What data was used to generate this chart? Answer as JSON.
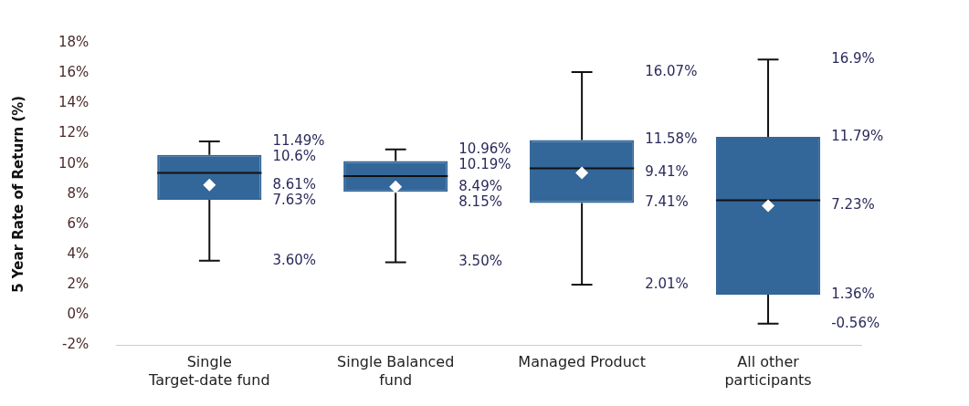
{
  "chart_data": {
    "type": "box",
    "ylabel": "5 Year Rate of Return (%)",
    "categories": [
      "Single Target-date fund",
      "Single Balanced fund",
      "Managed Product",
      "All other participants"
    ],
    "color": "#336699",
    "boxes": [
      {
        "low": 3.6,
        "q1": 7.63,
        "median": 9.4,
        "q3": 10.6,
        "high": 11.49,
        "mean": 8.61
      },
      {
        "low": 3.5,
        "q1": 8.15,
        "median": 9.2,
        "q3": 10.19,
        "high": 10.96,
        "mean": 8.49
      },
      {
        "low": 2.01,
        "q1": 7.41,
        "median": 9.7,
        "q3": 11.58,
        "high": 16.07,
        "mean": 9.41
      },
      {
        "low": -0.56,
        "q1": 1.36,
        "median": 7.6,
        "q3": 11.79,
        "high": 16.9,
        "mean": 7.23
      }
    ],
    "ylim": [
      -2,
      18
    ],
    "yticks": [
      {
        "value": -2,
        "label": "-2%"
      },
      {
        "value": 0,
        "label": "0%"
      },
      {
        "value": 2,
        "label": "2%"
      },
      {
        "value": 4,
        "label": "4%"
      },
      {
        "value": 6,
        "label": "6%"
      },
      {
        "value": 8,
        "label": "8%"
      },
      {
        "value": 10,
        "label": "10%"
      },
      {
        "value": 12,
        "label": "12%"
      },
      {
        "value": 14,
        "label": "14%"
      },
      {
        "value": 16,
        "label": "16%"
      },
      {
        "value": 18,
        "label": "18%"
      }
    ],
    "grid": false,
    "marker": "diamond",
    "annotations": [
      "11.49%",
      "10.6%",
      "8.61%",
      "7.63%",
      "3.60%",
      "10.96%",
      "10.19%",
      "8.49%",
      "8.15%",
      "3.50%",
      "16.07%",
      "11.58%",
      "9.41%",
      "7.41%",
      "2.01%",
      "16.9%",
      "11.79%",
      "7.23%",
      "1.36%",
      "-0.56%"
    ]
  }
}
